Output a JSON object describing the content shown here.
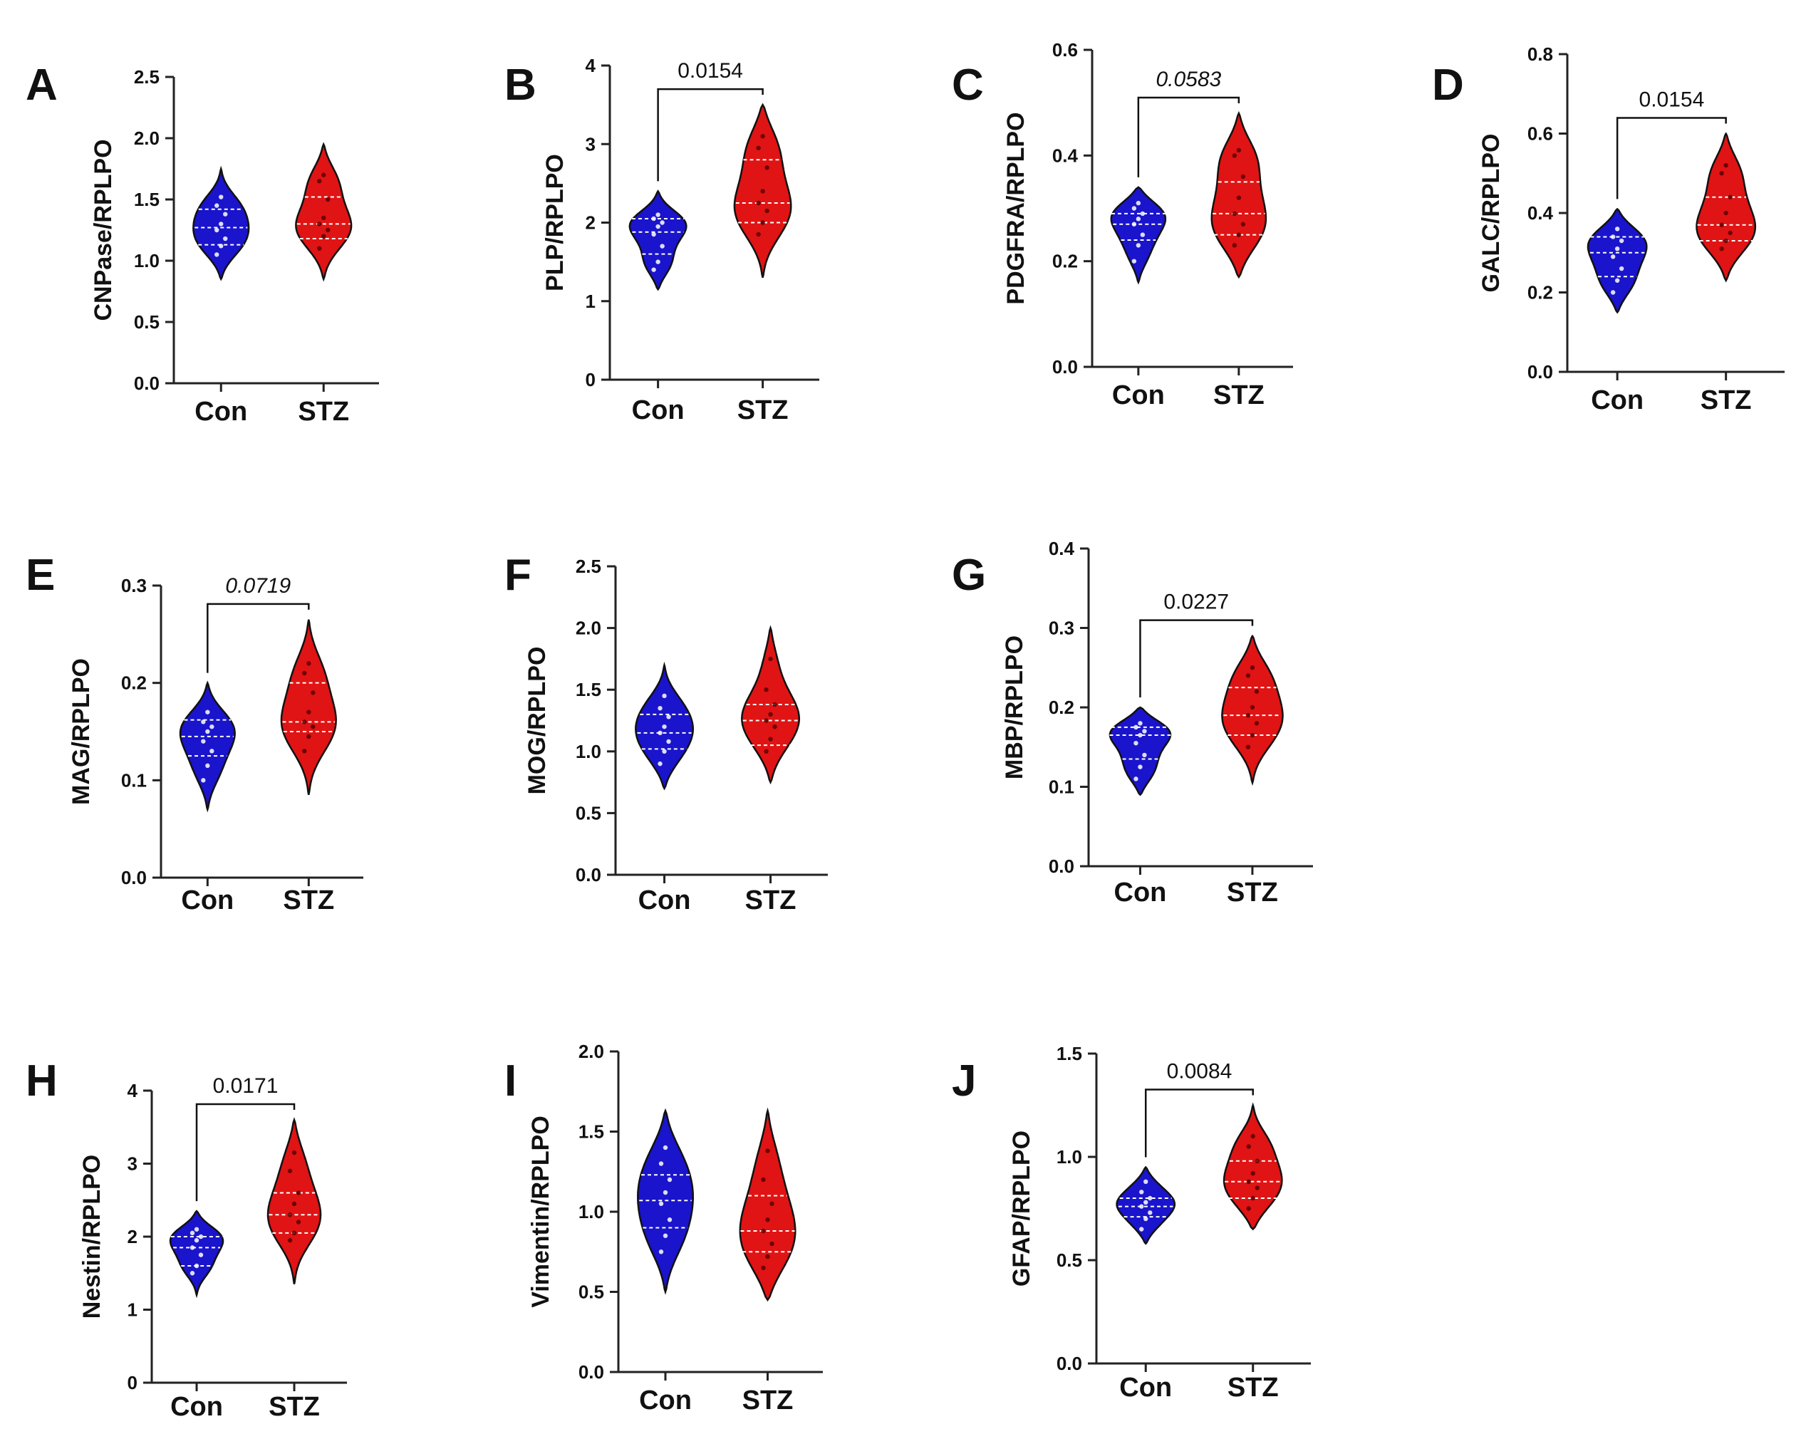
{
  "figure": {
    "group_labels": [
      "Con",
      "STZ"
    ]
  },
  "colors": {
    "con": "#1a14cc",
    "stz": "#e01414",
    "axis": "#222222"
  },
  "chart_data": [
    {
      "type": "violin",
      "label": "A",
      "ylabel": "CNPase/RPLPO",
      "ylim": [
        0,
        2.5
      ],
      "yticks": [
        "0.0",
        "0.5",
        "1.0",
        "1.5",
        "2.0",
        "2.5"
      ],
      "categories": [
        "Con",
        "STZ"
      ],
      "series": [
        {
          "name": "Con",
          "min": 0.85,
          "max": 1.75,
          "median": 1.27,
          "q1": 1.13,
          "q3": 1.42,
          "points": [
            1.05,
            1.12,
            1.18,
            1.25,
            1.3,
            1.38,
            1.45,
            1.52
          ]
        },
        {
          "name": "STZ",
          "min": 0.85,
          "max": 1.95,
          "median": 1.3,
          "q1": 1.18,
          "q3": 1.52,
          "points": [
            1.1,
            1.2,
            1.25,
            1.3,
            1.35,
            1.5,
            1.65,
            1.7
          ]
        }
      ],
      "significance": null
    },
    {
      "type": "violin",
      "label": "B",
      "ylabel": "PLP/RPLPO",
      "ylim": [
        0,
        4
      ],
      "yticks": [
        "0",
        "1",
        "2",
        "3",
        "4"
      ],
      "categories": [
        "Con",
        "STZ"
      ],
      "series": [
        {
          "name": "Con",
          "min": 1.15,
          "max": 2.4,
          "median": 1.88,
          "q1": 1.6,
          "q3": 2.05,
          "points": [
            1.4,
            1.5,
            1.7,
            1.85,
            1.95,
            2.0,
            2.05,
            2.1
          ]
        },
        {
          "name": "STZ",
          "min": 1.3,
          "max": 3.5,
          "median": 2.25,
          "q1": 2.0,
          "q3": 2.8,
          "points": [
            1.85,
            2.0,
            2.15,
            2.25,
            2.4,
            2.7,
            2.95,
            3.1
          ]
        }
      ],
      "significance": {
        "text": "0.0154",
        "italic": false
      }
    },
    {
      "type": "violin",
      "label": "C",
      "ylabel": "PDGFRA/RPLPO",
      "ylim": [
        0,
        0.6
      ],
      "yticks": [
        "0.0",
        "0.2",
        "0.4",
        "0.6"
      ],
      "categories": [
        "Con",
        "STZ"
      ],
      "series": [
        {
          "name": "Con",
          "min": 0.16,
          "max": 0.34,
          "median": 0.27,
          "q1": 0.24,
          "q3": 0.29,
          "points": [
            0.2,
            0.23,
            0.25,
            0.27,
            0.28,
            0.29,
            0.3,
            0.31
          ]
        },
        {
          "name": "STZ",
          "min": 0.17,
          "max": 0.48,
          "median": 0.29,
          "q1": 0.25,
          "q3": 0.35,
          "points": [
            0.23,
            0.25,
            0.27,
            0.29,
            0.32,
            0.36,
            0.4,
            0.41
          ]
        }
      ],
      "significance": {
        "text": "0.0583",
        "italic": true
      }
    },
    {
      "type": "violin",
      "label": "D",
      "ylabel": "GALC/RPLPO",
      "ylim": [
        0,
        0.8
      ],
      "yticks": [
        "0.0",
        "0.2",
        "0.4",
        "0.6",
        "0.8"
      ],
      "categories": [
        "Con",
        "STZ"
      ],
      "series": [
        {
          "name": "Con",
          "min": 0.15,
          "max": 0.41,
          "median": 0.3,
          "q1": 0.24,
          "q3": 0.34,
          "points": [
            0.2,
            0.23,
            0.26,
            0.29,
            0.31,
            0.33,
            0.34,
            0.36
          ]
        },
        {
          "name": "STZ",
          "min": 0.23,
          "max": 0.6,
          "median": 0.37,
          "q1": 0.33,
          "q3": 0.44,
          "points": [
            0.31,
            0.33,
            0.35,
            0.37,
            0.4,
            0.44,
            0.5,
            0.52
          ]
        }
      ],
      "significance": {
        "text": "0.0154",
        "italic": false
      }
    },
    {
      "type": "violin",
      "label": "E",
      "ylabel": "MAG/RPLPO",
      "ylim": [
        0,
        0.3
      ],
      "yticks": [
        "0.0",
        "0.1",
        "0.2",
        "0.3"
      ],
      "categories": [
        "Con",
        "STZ"
      ],
      "series": [
        {
          "name": "Con",
          "min": 0.07,
          "max": 0.2,
          "median": 0.145,
          "q1": 0.125,
          "q3": 0.162,
          "points": [
            0.1,
            0.115,
            0.13,
            0.14,
            0.15,
            0.155,
            0.16,
            0.17
          ]
        },
        {
          "name": "STZ",
          "min": 0.085,
          "max": 0.265,
          "median": 0.16,
          "q1": 0.15,
          "q3": 0.2,
          "points": [
            0.13,
            0.145,
            0.155,
            0.16,
            0.17,
            0.19,
            0.21,
            0.22
          ]
        }
      ],
      "significance": {
        "text": "0.0719",
        "italic": true
      }
    },
    {
      "type": "violin",
      "label": "F",
      "ylabel": "MOG/RPLPO",
      "ylim": [
        0,
        2.5
      ],
      "yticks": [
        "0.0",
        "0.5",
        "1.0",
        "1.5",
        "2.0",
        "2.5"
      ],
      "categories": [
        "Con",
        "STZ"
      ],
      "series": [
        {
          "name": "Con",
          "min": 0.7,
          "max": 1.7,
          "median": 1.15,
          "q1": 1.02,
          "q3": 1.3,
          "points": [
            0.9,
            1.0,
            1.08,
            1.15,
            1.2,
            1.28,
            1.35,
            1.45
          ]
        },
        {
          "name": "STZ",
          "min": 0.75,
          "max": 2.0,
          "median": 1.25,
          "q1": 1.05,
          "q3": 1.38,
          "points": [
            1.0,
            1.1,
            1.2,
            1.25,
            1.3,
            1.38,
            1.5,
            1.75
          ]
        }
      ],
      "significance": null
    },
    {
      "type": "violin",
      "label": "G",
      "ylabel": "MBP/RPLPO",
      "ylim": [
        0,
        0.4
      ],
      "yticks": [
        "0.0",
        "0.1",
        "0.2",
        "0.3",
        "0.4"
      ],
      "categories": [
        "Con",
        "STZ"
      ],
      "series": [
        {
          "name": "Con",
          "min": 0.09,
          "max": 0.2,
          "median": 0.165,
          "q1": 0.135,
          "q3": 0.175,
          "points": [
            0.11,
            0.125,
            0.14,
            0.155,
            0.165,
            0.17,
            0.175,
            0.18
          ]
        },
        {
          "name": "STZ",
          "min": 0.105,
          "max": 0.29,
          "median": 0.19,
          "q1": 0.165,
          "q3": 0.225,
          "points": [
            0.15,
            0.165,
            0.18,
            0.19,
            0.2,
            0.22,
            0.24,
            0.25
          ]
        }
      ],
      "significance": {
        "text": "0.0227",
        "italic": false
      }
    },
    {
      "type": "violin",
      "label": "H",
      "ylabel": "Nestin/RPLPO",
      "ylim": [
        0,
        4
      ],
      "yticks": [
        "0",
        "1",
        "2",
        "3",
        "4"
      ],
      "categories": [
        "Con",
        "STZ"
      ],
      "series": [
        {
          "name": "Con",
          "min": 1.2,
          "max": 2.35,
          "median": 1.85,
          "q1": 1.6,
          "q3": 2.0,
          "points": [
            1.5,
            1.6,
            1.75,
            1.85,
            1.95,
            2.0,
            2.05,
            2.1
          ]
        },
        {
          "name": "STZ",
          "min": 1.35,
          "max": 3.6,
          "median": 2.3,
          "q1": 2.05,
          "q3": 2.6,
          "points": [
            1.95,
            2.05,
            2.2,
            2.3,
            2.45,
            2.6,
            2.9,
            3.15
          ]
        }
      ],
      "significance": {
        "text": "0.0171",
        "italic": false
      }
    },
    {
      "type": "violin",
      "label": "I",
      "ylabel": "Vimentin/RPLPO",
      "ylim": [
        0,
        2.0
      ],
      "yticks": [
        "0.0",
        "0.5",
        "1.0",
        "1.5",
        "2.0"
      ],
      "categories": [
        "Con",
        "STZ"
      ],
      "series": [
        {
          "name": "Con",
          "min": 0.5,
          "max": 1.63,
          "median": 1.07,
          "q1": 0.9,
          "q3": 1.23,
          "points": [
            0.75,
            0.85,
            0.95,
            1.05,
            1.12,
            1.2,
            1.3,
            1.4
          ]
        },
        {
          "name": "STZ",
          "min": 0.45,
          "max": 1.63,
          "median": 0.88,
          "q1": 0.75,
          "q3": 1.1,
          "points": [
            0.65,
            0.72,
            0.8,
            0.88,
            0.95,
            1.05,
            1.2,
            1.38
          ]
        }
      ],
      "significance": null
    },
    {
      "type": "violin",
      "label": "J",
      "ylabel": "GFAP/RPLPO",
      "ylim": [
        0,
        1.5
      ],
      "yticks": [
        "0.0",
        "0.5",
        "1.0",
        "1.5"
      ],
      "categories": [
        "Con",
        "STZ"
      ],
      "series": [
        {
          "name": "Con",
          "min": 0.58,
          "max": 0.95,
          "median": 0.76,
          "q1": 0.71,
          "q3": 0.8,
          "points": [
            0.65,
            0.7,
            0.73,
            0.76,
            0.78,
            0.8,
            0.83,
            0.88
          ]
        },
        {
          "name": "STZ",
          "min": 0.65,
          "max": 1.25,
          "median": 0.88,
          "q1": 0.8,
          "q3": 0.98,
          "points": [
            0.75,
            0.8,
            0.85,
            0.88,
            0.92,
            0.98,
            1.05,
            1.1
          ]
        }
      ],
      "significance": {
        "text": "0.0084",
        "italic": false
      }
    }
  ]
}
